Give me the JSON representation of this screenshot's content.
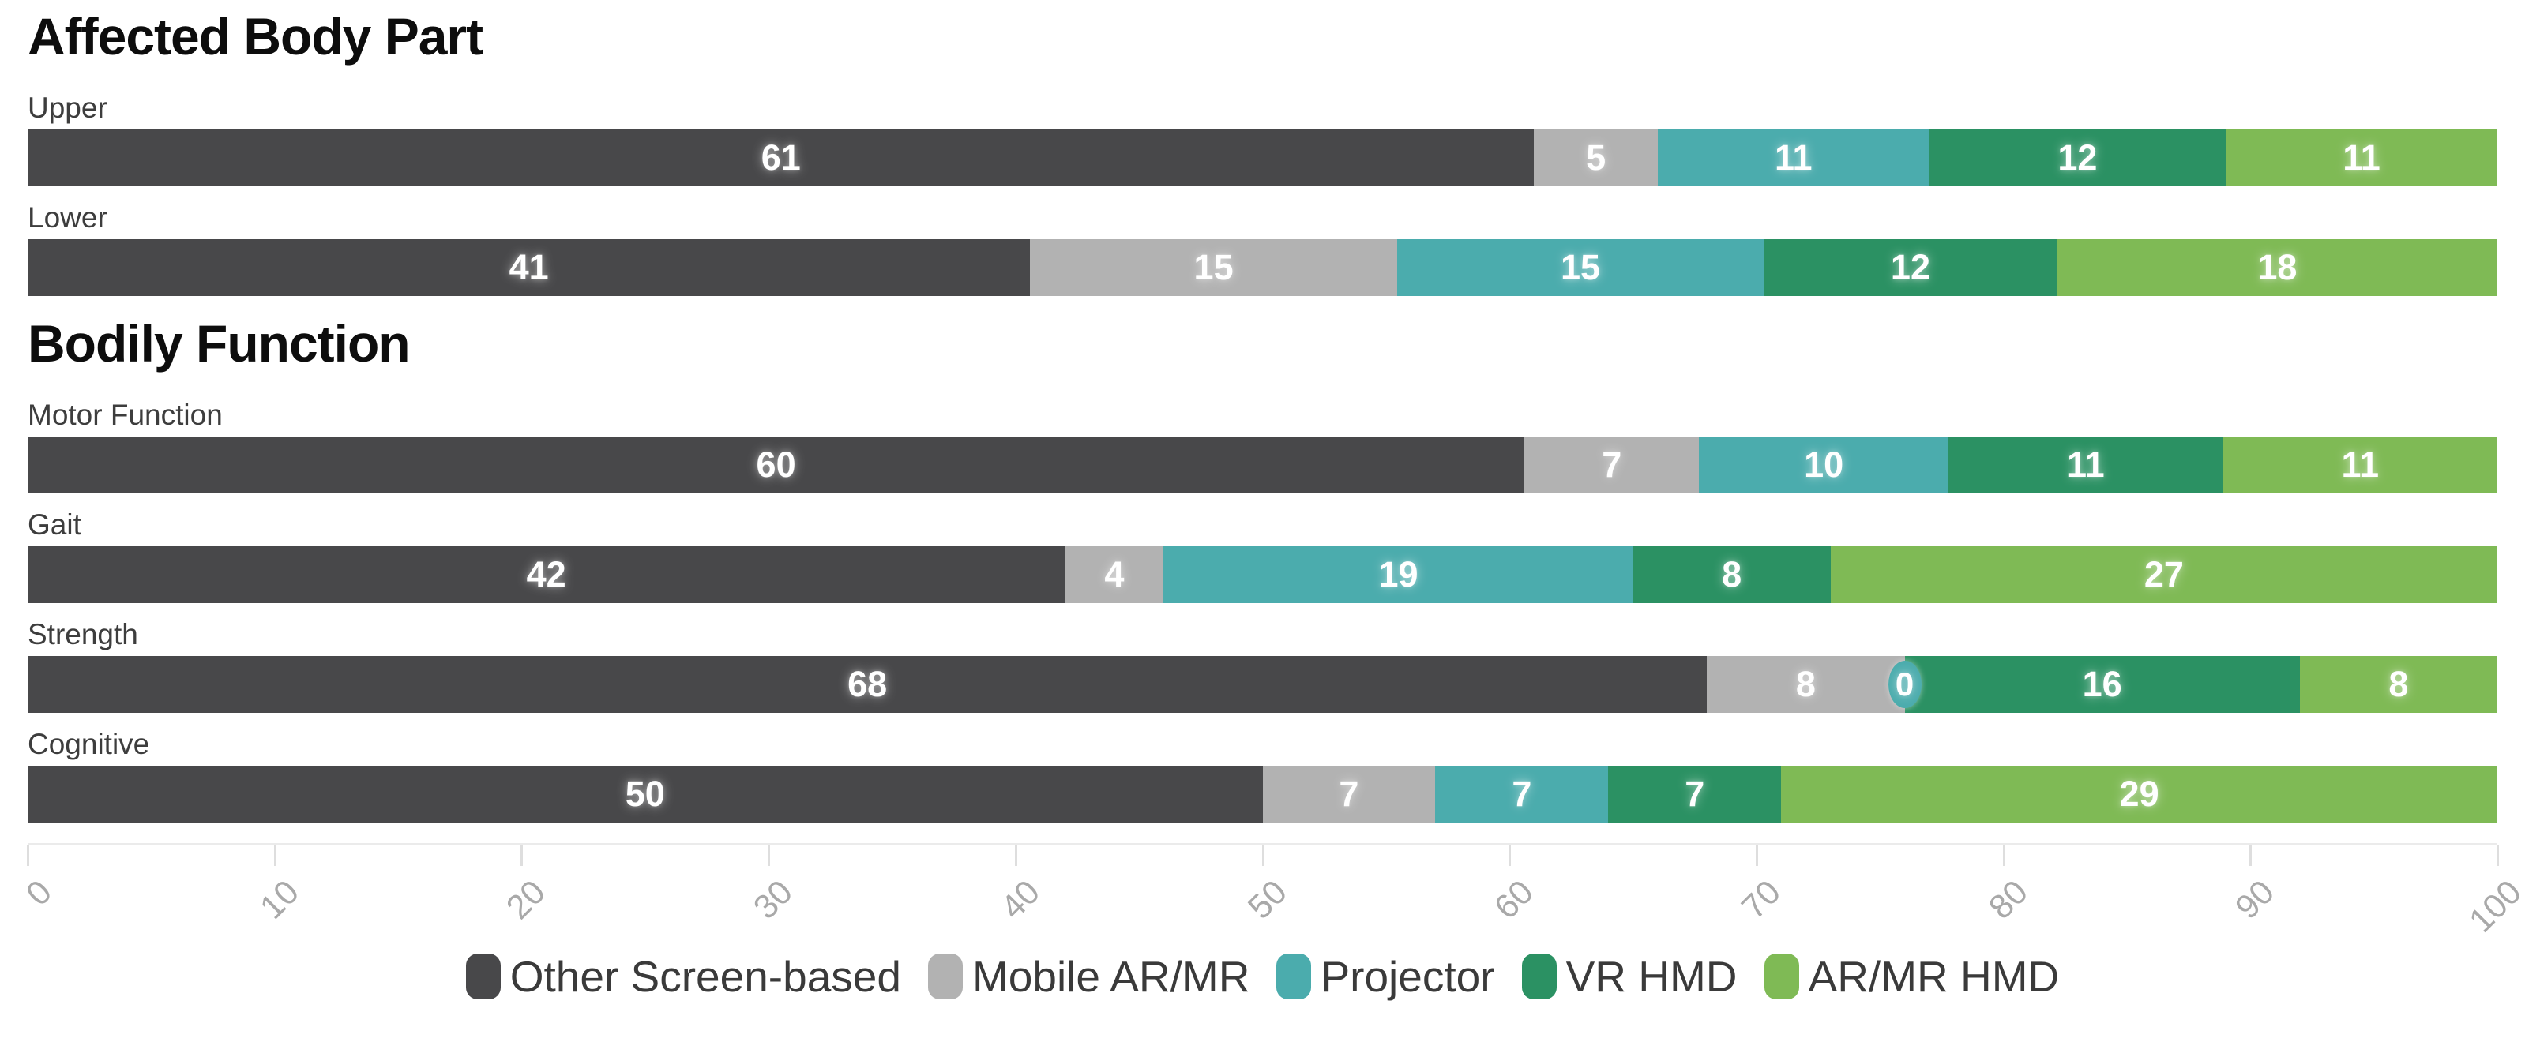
{
  "page": {
    "background": "#ffffff"
  },
  "colors": {
    "section_title": "#0d0d0d",
    "row_label": "#3d3d3d",
    "bar_value_text": "#ffffff",
    "axis_line": "#ebebeb",
    "axis_tick": "#dedede",
    "axis_tick_label": "#a9a9a9",
    "legend_text": "#3a3a3a"
  },
  "legend": {
    "items": [
      {
        "label": "Other Screen-based",
        "color": "#48484a"
      },
      {
        "label": "Mobile AR/MR",
        "color": "#b2b2b2"
      },
      {
        "label": "Projector",
        "color": "#4bacad"
      },
      {
        "label": "VR HMD",
        "color": "#2b9163"
      },
      {
        "label": "AR/MR HMD",
        "color": "#7fba55"
      }
    ],
    "position": "bottom-center"
  },
  "x_axis": {
    "ticks": [
      0,
      10,
      20,
      30,
      40,
      50,
      60,
      70,
      80,
      90,
      100
    ],
    "range": [
      0,
      100
    ],
    "tick_label_rotation_deg": 45,
    "grid": false
  },
  "chart_data": [
    {
      "type": "bar",
      "orientation": "horizontal",
      "stacked": true,
      "title": "Affected Body Part",
      "categories": [
        "Upper",
        "Lower"
      ],
      "xlim": [
        0,
        100
      ],
      "series": [
        {
          "name": "Other Screen-based",
          "values": [
            61,
            41
          ]
        },
        {
          "name": "Mobile AR/MR",
          "values": [
            5,
            15
          ]
        },
        {
          "name": "Projector",
          "values": [
            11,
            15
          ]
        },
        {
          "name": "VR HMD",
          "values": [
            12,
            12
          ]
        },
        {
          "name": "AR/MR HMD",
          "values": [
            11,
            18
          ]
        }
      ]
    },
    {
      "type": "bar",
      "orientation": "horizontal",
      "stacked": true,
      "title": "Bodily Function",
      "categories": [
        "Motor Function",
        "Gait",
        "Strength",
        "Cognitive"
      ],
      "xlim": [
        0,
        100
      ],
      "series": [
        {
          "name": "Other Screen-based",
          "values": [
            60,
            42,
            68,
            50
          ]
        },
        {
          "name": "Mobile AR/MR",
          "values": [
            7,
            4,
            8,
            7
          ]
        },
        {
          "name": "Projector",
          "values": [
            10,
            19,
            0,
            7
          ]
        },
        {
          "name": "VR HMD",
          "values": [
            11,
            8,
            16,
            7
          ]
        },
        {
          "name": "AR/MR HMD",
          "values": [
            11,
            27,
            8,
            29
          ]
        }
      ]
    }
  ]
}
